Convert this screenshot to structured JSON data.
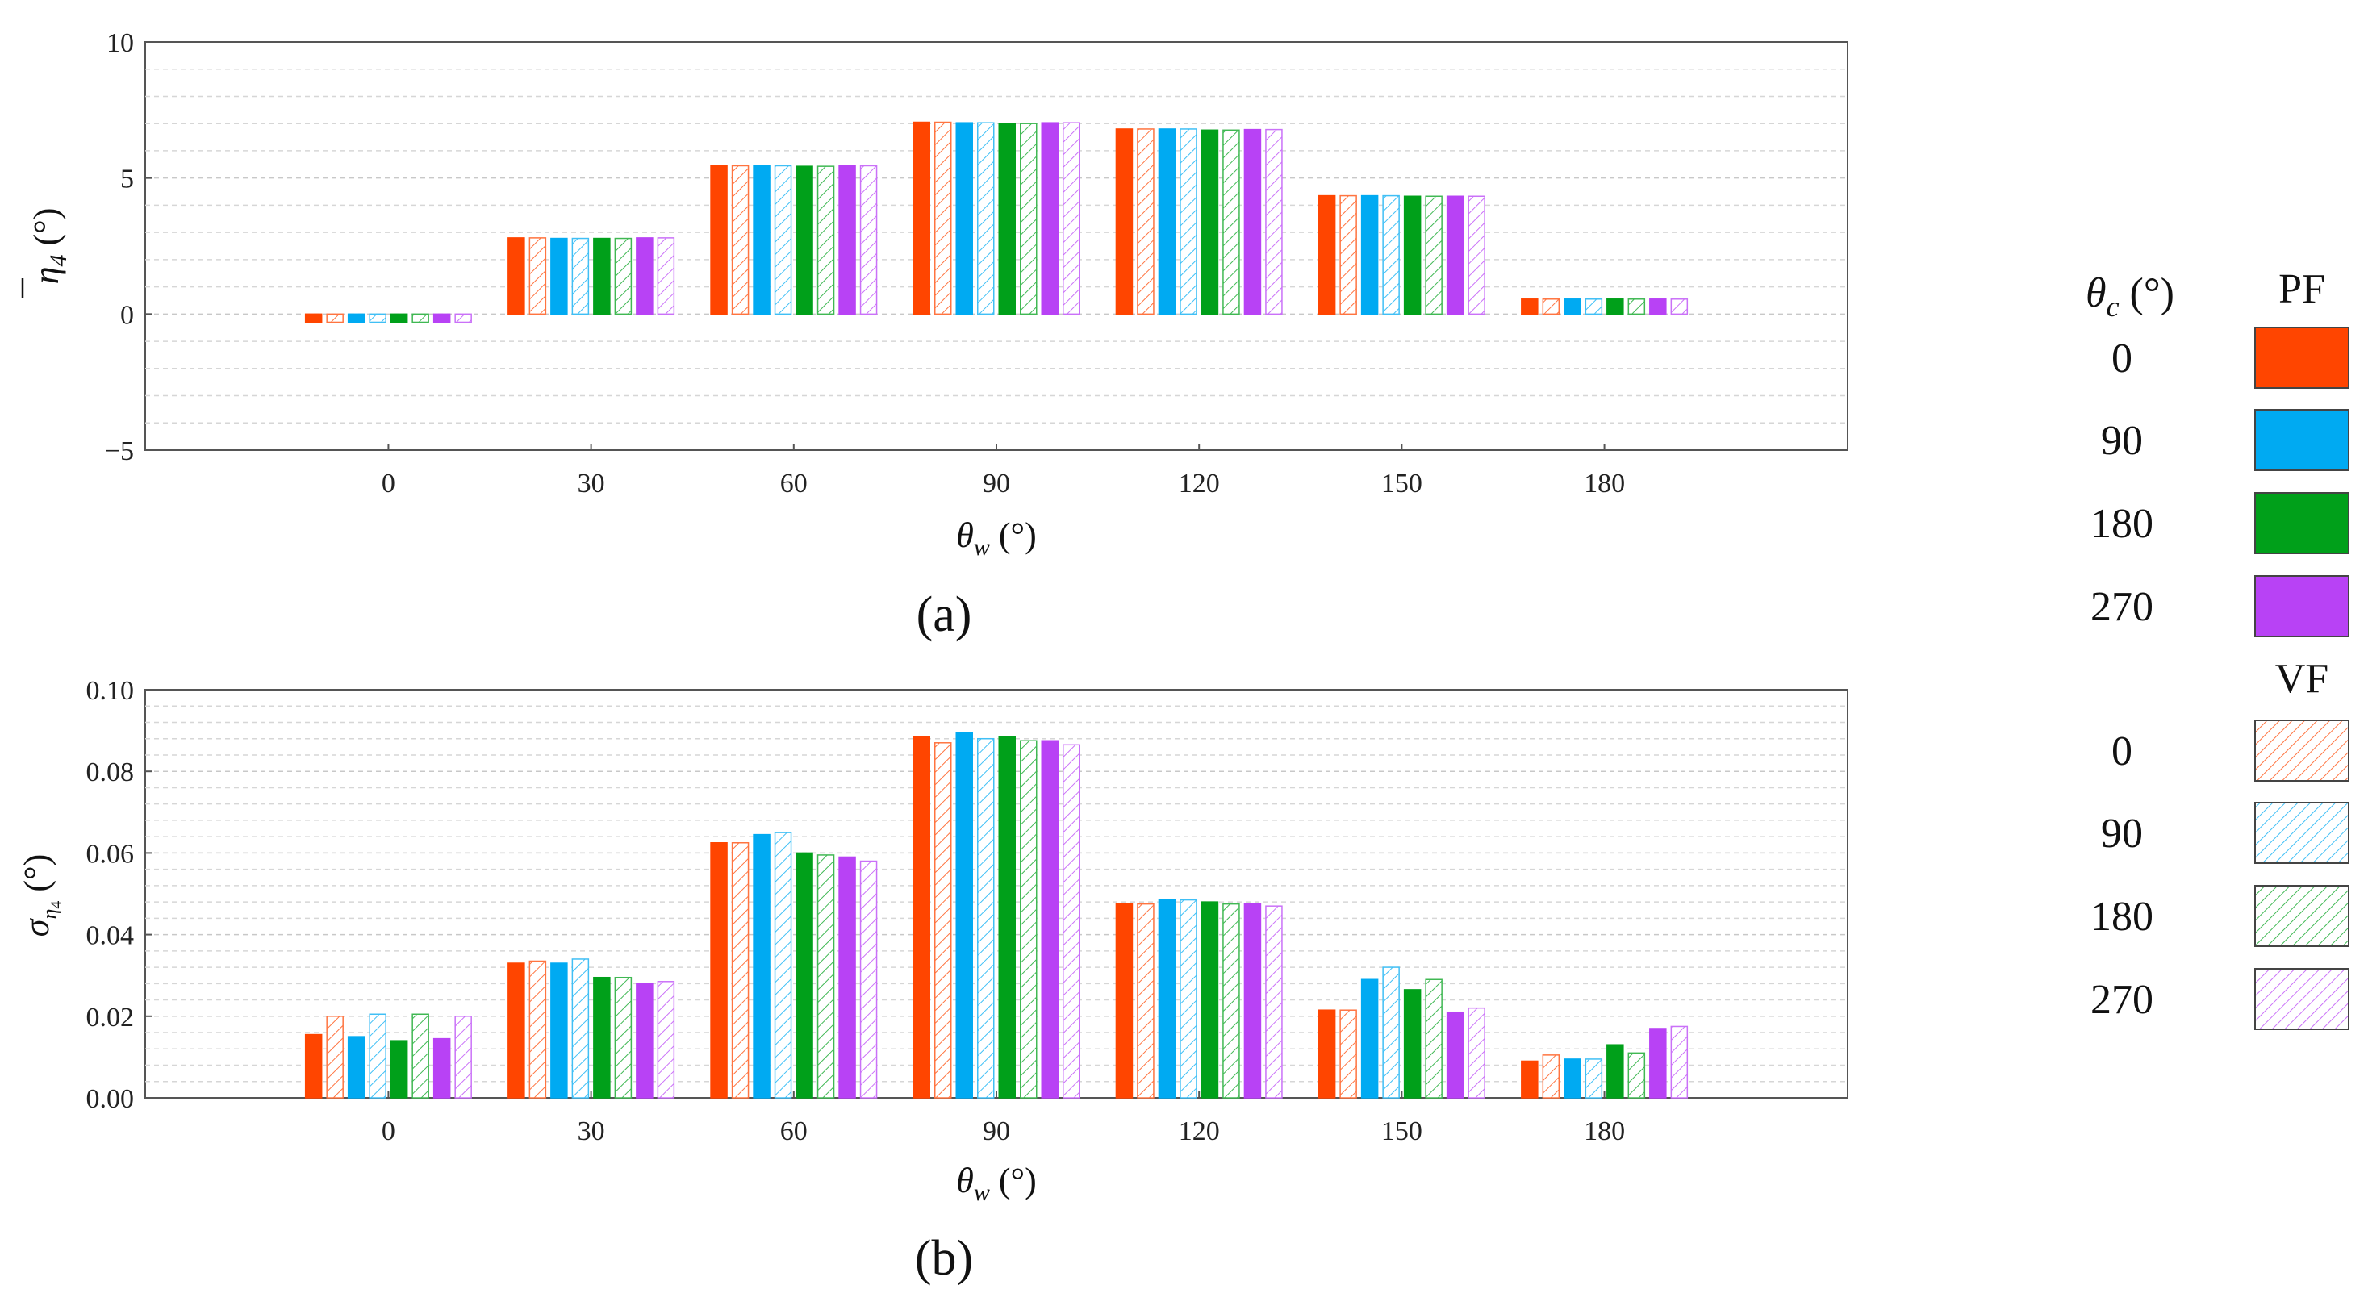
{
  "colors": {
    "0": "#FF4500",
    "90": "#00AAF2",
    "180": "#00A01A",
    "270": "#B842F5"
  },
  "chart_data": [
    {
      "type": "bar",
      "panel_label": "(a)",
      "xlabel_symbol": "θ",
      "xlabel_sub": "w",
      "xlabel_unit": " (°)",
      "ylabel_symbol": "η",
      "ylabel_sub": "4",
      "ylabel_unit": " (°)",
      "categories": [
        "0",
        "30",
        "60",
        "90",
        "120",
        "150",
        "180"
      ],
      "ylim": [
        -5,
        10
      ],
      "yticks": [
        -5,
        0,
        5,
        10
      ],
      "ytick_labels": [
        "−5",
        "0",
        "5",
        "10"
      ],
      "grid": true,
      "series": [
        {
          "name": "PF 0",
          "group": "PF",
          "theta_c": "0",
          "values": [
            -0.3,
            2.8,
            5.45,
            7.05,
            6.8,
            4.35,
            0.55
          ]
        },
        {
          "name": "VF 0",
          "group": "VF",
          "theta_c": "0",
          "values": [
            -0.3,
            2.8,
            5.45,
            7.05,
            6.8,
            4.35,
            0.55
          ]
        },
        {
          "name": "PF 90",
          "group": "PF",
          "theta_c": "90",
          "values": [
            -0.3,
            2.78,
            5.45,
            7.03,
            6.8,
            4.35,
            0.55
          ]
        },
        {
          "name": "VF 90",
          "group": "VF",
          "theta_c": "90",
          "values": [
            -0.3,
            2.78,
            5.45,
            7.03,
            6.8,
            4.35,
            0.55
          ]
        },
        {
          "name": "PF 180",
          "group": "PF",
          "theta_c": "180",
          "values": [
            -0.3,
            2.78,
            5.43,
            7.0,
            6.76,
            4.33,
            0.55
          ]
        },
        {
          "name": "VF 180",
          "group": "VF",
          "theta_c": "180",
          "values": [
            -0.3,
            2.78,
            5.43,
            7.0,
            6.76,
            4.33,
            0.55
          ]
        },
        {
          "name": "PF 270",
          "group": "PF",
          "theta_c": "270",
          "values": [
            -0.3,
            2.8,
            5.45,
            7.03,
            6.78,
            4.33,
            0.55
          ]
        },
        {
          "name": "VF 270",
          "group": "VF",
          "theta_c": "270",
          "values": [
            -0.3,
            2.8,
            5.45,
            7.03,
            6.78,
            4.33,
            0.55
          ]
        }
      ]
    },
    {
      "type": "bar",
      "panel_label": "(b)",
      "xlabel_symbol": "θ",
      "xlabel_sub": "w",
      "xlabel_unit": " (°)",
      "ylabel_symbol": "σ",
      "ylabel_sub": "η",
      "ylabel_subsub": "4",
      "ylabel_unit": " (°)",
      "categories": [
        "0",
        "30",
        "60",
        "90",
        "120",
        "150",
        "180"
      ],
      "ylim": [
        0,
        0.1
      ],
      "yticks": [
        0,
        0.02,
        0.04,
        0.06,
        0.08,
        0.1
      ],
      "ytick_labels": [
        "0.00",
        "0.02",
        "0.04",
        "0.06",
        "0.08",
        "0.10"
      ],
      "grid": true,
      "series": [
        {
          "name": "PF 0",
          "group": "PF",
          "theta_c": "0",
          "values": [
            0.0155,
            0.033,
            0.0625,
            0.0885,
            0.0475,
            0.0215,
            0.009
          ]
        },
        {
          "name": "VF 0",
          "group": "VF",
          "theta_c": "0",
          "values": [
            0.02,
            0.0335,
            0.0625,
            0.087,
            0.0475,
            0.0215,
            0.0105
          ]
        },
        {
          "name": "PF 90",
          "group": "PF",
          "theta_c": "90",
          "values": [
            0.015,
            0.033,
            0.0645,
            0.0895,
            0.0485,
            0.029,
            0.0095
          ]
        },
        {
          "name": "VF 90",
          "group": "VF",
          "theta_c": "90",
          "values": [
            0.0205,
            0.034,
            0.065,
            0.088,
            0.0485,
            0.032,
            0.0095
          ]
        },
        {
          "name": "PF 180",
          "group": "PF",
          "theta_c": "180",
          "values": [
            0.014,
            0.0295,
            0.06,
            0.0885,
            0.048,
            0.0265,
            0.013
          ]
        },
        {
          "name": "VF 180",
          "group": "VF",
          "theta_c": "180",
          "values": [
            0.0205,
            0.0295,
            0.0595,
            0.0875,
            0.0475,
            0.029,
            0.011
          ]
        },
        {
          "name": "PF 270",
          "group": "PF",
          "theta_c": "270",
          "values": [
            0.0145,
            0.028,
            0.059,
            0.0875,
            0.0475,
            0.021,
            0.017
          ]
        },
        {
          "name": "VF 270",
          "group": "VF",
          "theta_c": "270",
          "values": [
            0.02,
            0.0285,
            0.058,
            0.0865,
            0.047,
            0.022,
            0.0175
          ]
        }
      ]
    }
  ],
  "legend": {
    "title_symbol": "θ",
    "title_sub": "c",
    "title_unit": " (°)",
    "pf_header": "PF",
    "vf_header": "VF",
    "pf_items": [
      {
        "label": "0",
        "theta_c": "0"
      },
      {
        "label": "90",
        "theta_c": "90"
      },
      {
        "label": "180",
        "theta_c": "180"
      },
      {
        "label": "270",
        "theta_c": "270"
      }
    ],
    "vf_items": [
      {
        "label": "0",
        "theta_c": "0"
      },
      {
        "label": "90",
        "theta_c": "90"
      },
      {
        "label": "180",
        "theta_c": "180"
      },
      {
        "label": "270",
        "theta_c": "270"
      }
    ]
  }
}
